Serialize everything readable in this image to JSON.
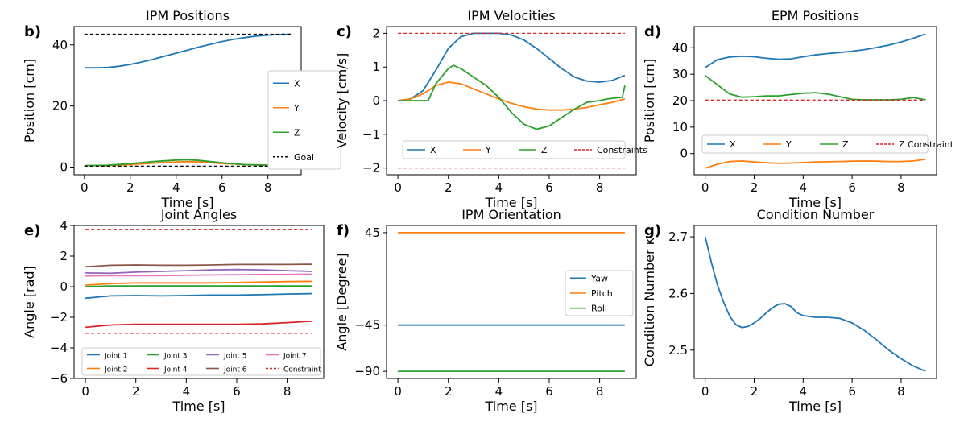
{
  "chart_data": [
    {
      "panel": "b)",
      "type": "line",
      "title": "IPM Positions",
      "xlabel": "Time [s]",
      "ylabel": "Position [cm]",
      "xlim": [
        -0.45,
        9.45
      ],
      "ylim": [
        -2.5,
        46
      ],
      "xticks": [
        0,
        2,
        4,
        6,
        8
      ],
      "yticks": [
        0,
        20,
        40
      ],
      "legend_position": "center-right",
      "series": [
        {
          "name": "X",
          "color": "#1f77b4",
          "dash": "",
          "x": [
            0,
            0.5,
            1,
            1.5,
            2,
            2.5,
            3,
            3.5,
            4,
            4.5,
            5,
            5.5,
            6,
            6.5,
            7,
            7.5,
            8,
            8.5,
            9
          ],
          "y": [
            32.5,
            32.5,
            32.6,
            33.0,
            33.6,
            34.4,
            35.3,
            36.3,
            37.3,
            38.3,
            39.3,
            40.2,
            41.1,
            41.8,
            42.4,
            42.9,
            43.2,
            43.4,
            43.5
          ]
        },
        {
          "name": "Y",
          "color": "#ff7f0e",
          "dash": "",
          "x": [
            0,
            1,
            2,
            3,
            4,
            4.5,
            5,
            6,
            7,
            8,
            9
          ],
          "y": [
            0.5,
            0.5,
            0.8,
            1.3,
            1.7,
            1.8,
            1.7,
            1.2,
            0.8,
            0.6,
            0.5
          ]
        },
        {
          "name": "Z",
          "color": "#2ca02c",
          "dash": "",
          "x": [
            0,
            1,
            2,
            3,
            4,
            4.5,
            5,
            6,
            7,
            8,
            9
          ],
          "y": [
            0.5,
            0.6,
            1.1,
            1.8,
            2.3,
            2.4,
            2.2,
            1.4,
            0.8,
            0.6,
            0.5
          ]
        },
        {
          "name": "Goal",
          "color": "#000000",
          "dash": "4,3",
          "x": [
            0,
            9
          ],
          "y": [
            43.5,
            43.5
          ]
        },
        {
          "name": "",
          "color": "#000000",
          "dash": "4,3",
          "x": [
            0,
            9
          ],
          "y": [
            0.3,
            0.3
          ]
        }
      ]
    },
    {
      "panel": "c)",
      "type": "line",
      "title": "IPM Velocities",
      "xlabel": "Time [s]",
      "ylabel": "Velocity [cm/s]",
      "xlim": [
        -0.45,
        9.45
      ],
      "ylim": [
        -2.2,
        2.2
      ],
      "xticks": [
        0,
        2,
        4,
        6,
        8
      ],
      "yticks": [
        -2,
        -1,
        0,
        1,
        2
      ],
      "legend_position": "bottom",
      "series": [
        {
          "name": "X",
          "color": "#1f77b4",
          "dash": "",
          "x": [
            0,
            0.5,
            1,
            1.5,
            2,
            2.5,
            3,
            3.5,
            4,
            4.5,
            5,
            5.5,
            6,
            6.5,
            7,
            7.5,
            8,
            8.5,
            9
          ],
          "y": [
            0.0,
            0.05,
            0.3,
            0.9,
            1.55,
            1.9,
            2.0,
            2.0,
            2.0,
            1.95,
            1.8,
            1.55,
            1.25,
            0.95,
            0.7,
            0.58,
            0.55,
            0.6,
            0.75
          ]
        },
        {
          "name": "Y",
          "color": "#ff7f0e",
          "dash": "",
          "x": [
            0,
            0.5,
            1,
            1.5,
            2,
            2.5,
            3,
            3.5,
            4,
            4.5,
            5,
            5.5,
            6,
            6.5,
            7,
            7.5,
            8,
            8.5,
            9
          ],
          "y": [
            0.0,
            0.05,
            0.2,
            0.45,
            0.55,
            0.5,
            0.35,
            0.2,
            0.05,
            -0.08,
            -0.18,
            -0.25,
            -0.28,
            -0.28,
            -0.25,
            -0.2,
            -0.12,
            -0.05,
            0.05
          ]
        },
        {
          "name": "Z",
          "color": "#2ca02c",
          "dash": "",
          "x": [
            0,
            1.2,
            1.5,
            2,
            2.2,
            2.5,
            3,
            3.5,
            4,
            4.5,
            5,
            5.5,
            6,
            6.5,
            7,
            7.5,
            8,
            8.3,
            8.9,
            9
          ],
          "y": [
            0.0,
            0.0,
            0.5,
            0.95,
            1.05,
            0.95,
            0.7,
            0.45,
            0.1,
            -0.35,
            -0.7,
            -0.85,
            -0.75,
            -0.5,
            -0.25,
            -0.05,
            0.0,
            0.05,
            0.1,
            0.45
          ]
        },
        {
          "name": "Constraints",
          "color": "#d62728",
          "dash": "4,3",
          "x": [
            0,
            9
          ],
          "y": [
            2.0,
            2.0
          ]
        },
        {
          "name": "",
          "color": "#d62728",
          "dash": "4,3",
          "x": [
            0,
            9
          ],
          "y": [
            -2.0,
            -2.0
          ]
        }
      ]
    },
    {
      "panel": "d)",
      "type": "line",
      "title": "EPM Positions",
      "xlabel": "Time [s]",
      "ylabel": "Position [cm]",
      "xlim": [
        -0.45,
        9.45
      ],
      "ylim": [
        -8,
        48
      ],
      "xticks": [
        0,
        2,
        4,
        6,
        8
      ],
      "yticks": [
        0,
        10,
        20,
        30,
        40
      ],
      "legend_position": "lower-center",
      "series": [
        {
          "name": "X",
          "color": "#1f77b4",
          "dash": "",
          "x": [
            0,
            0.5,
            1,
            1.5,
            2,
            2.5,
            3,
            3.5,
            4,
            4.5,
            5,
            5.5,
            6,
            6.5,
            7,
            7.5,
            8,
            8.5,
            9
          ],
          "y": [
            32.5,
            35.5,
            36.5,
            36.8,
            36.6,
            36.0,
            35.6,
            35.8,
            36.6,
            37.3,
            37.8,
            38.2,
            38.7,
            39.3,
            40.1,
            41.0,
            42.2,
            43.6,
            45.2
          ]
        },
        {
          "name": "Y",
          "color": "#ff7f0e",
          "dash": "",
          "x": [
            0,
            0.5,
            1,
            1.5,
            2,
            2.5,
            3,
            3.5,
            4,
            4.5,
            5,
            5.5,
            6,
            6.5,
            7,
            7.5,
            8,
            8.5,
            9
          ],
          "y": [
            -5.5,
            -4.0,
            -3.0,
            -2.8,
            -3.2,
            -3.5,
            -3.7,
            -3.6,
            -3.4,
            -3.2,
            -3.1,
            -3.0,
            -2.9,
            -2.8,
            -2.9,
            -3.0,
            -3.0,
            -2.8,
            -2.2
          ]
        },
        {
          "name": "Z",
          "color": "#2ca02c",
          "dash": "",
          "x": [
            0,
            0.5,
            1,
            1.5,
            2,
            2.5,
            3,
            3.5,
            4,
            4.5,
            5,
            5.5,
            6,
            6.5,
            7,
            7.5,
            8,
            8.5,
            9
          ],
          "y": [
            29.5,
            26.0,
            22.5,
            21.3,
            21.5,
            21.8,
            21.8,
            22.3,
            22.8,
            23.0,
            22.5,
            21.5,
            20.5,
            20.3,
            20.3,
            20.3,
            20.5,
            21.2,
            20.3
          ]
        },
        {
          "name": "Z Constraint",
          "color": "#d62728",
          "dash": "4,3",
          "x": [
            0,
            9
          ],
          "y": [
            20.2,
            20.2
          ]
        }
      ]
    },
    {
      "panel": "e)",
      "type": "line",
      "title": "Joint Angles",
      "xlabel": "Time [s]",
      "ylabel": "Angle [rad]",
      "xlim": [
        -0.45,
        9.45
      ],
      "ylim": [
        -6,
        4
      ],
      "xticks": [
        0,
        2,
        4,
        6,
        8
      ],
      "yticks": [
        -6,
        -4,
        -2,
        0,
        2,
        4
      ],
      "legend_position": "bottom",
      "series": [
        {
          "name": "Joint 1",
          "color": "#1f77b4",
          "dash": "",
          "x": [
            0,
            1,
            2,
            3,
            4,
            5,
            6,
            7,
            8,
            9
          ],
          "y": [
            -0.75,
            -0.6,
            -0.58,
            -0.6,
            -0.58,
            -0.55,
            -0.55,
            -0.52,
            -0.48,
            -0.45
          ]
        },
        {
          "name": "Joint 2",
          "color": "#ff7f0e",
          "dash": "",
          "x": [
            0,
            1,
            2,
            3,
            4,
            5,
            6,
            7,
            8,
            9
          ],
          "y": [
            0.1,
            0.2,
            0.25,
            0.25,
            0.25,
            0.25,
            0.27,
            0.3,
            0.33,
            0.35
          ]
        },
        {
          "name": "Joint 3",
          "color": "#2ca02c",
          "dash": "",
          "x": [
            0,
            1,
            2,
            3,
            4,
            5,
            6,
            7,
            8,
            9
          ],
          "y": [
            0.0,
            0.05,
            0.05,
            0.05,
            0.05,
            0.05,
            0.05,
            0.05,
            0.05,
            0.05
          ]
        },
        {
          "name": "Joint 4",
          "color": "#d62728",
          "dash": "",
          "x": [
            0,
            1,
            2,
            3,
            4,
            5,
            6,
            7,
            8,
            9
          ],
          "y": [
            -2.65,
            -2.5,
            -2.45,
            -2.45,
            -2.45,
            -2.45,
            -2.45,
            -2.43,
            -2.35,
            -2.25
          ]
        },
        {
          "name": "Joint 5",
          "color": "#9467bd",
          "dash": "",
          "x": [
            0,
            1,
            2,
            3,
            4,
            5,
            6,
            7,
            8,
            9
          ],
          "y": [
            0.9,
            0.88,
            0.95,
            1.0,
            1.05,
            1.1,
            1.12,
            1.1,
            1.05,
            1.0
          ]
        },
        {
          "name": "Joint 6",
          "color": "#8c564b",
          "dash": "",
          "x": [
            0,
            1,
            2,
            3,
            4,
            5,
            6,
            7,
            8,
            9
          ],
          "y": [
            1.3,
            1.4,
            1.42,
            1.4,
            1.4,
            1.42,
            1.45,
            1.45,
            1.45,
            1.47
          ]
        },
        {
          "name": "Joint 7",
          "color": "#e377c2",
          "dash": "",
          "x": [
            0,
            1,
            2,
            3,
            4,
            5,
            6,
            7,
            8,
            9
          ],
          "y": [
            0.7,
            0.72,
            0.72,
            0.72,
            0.75,
            0.77,
            0.78,
            0.8,
            0.8,
            0.82
          ]
        },
        {
          "name": "Constraint",
          "color": "#d62728",
          "dash": "4,3",
          "x": [
            0,
            9
          ],
          "y": [
            3.75,
            3.75
          ]
        },
        {
          "name": "",
          "color": "#d62728",
          "dash": "4,3",
          "x": [
            0,
            9
          ],
          "y": [
            -3.05,
            -3.05
          ]
        }
      ]
    },
    {
      "panel": "f)",
      "type": "line",
      "title": "IPM Orientation",
      "xlabel": "Time [s]",
      "ylabel": "Angle [Degree]",
      "xlim": [
        -0.45,
        9.45
      ],
      "ylim": [
        -97,
        52
      ],
      "xticks": [
        0,
        2,
        4,
        6,
        8
      ],
      "yticks": [
        -90,
        -45,
        45
      ],
      "legend_position": "center-right",
      "series": [
        {
          "name": "Yaw",
          "color": "#1f77b4",
          "dash": "",
          "x": [
            0,
            9
          ],
          "y": [
            -45,
            -45
          ]
        },
        {
          "name": "Pitch",
          "color": "#ff7f0e",
          "dash": "",
          "x": [
            0,
            9
          ],
          "y": [
            45,
            45
          ]
        },
        {
          "name": "Roll",
          "color": "#2ca02c",
          "dash": "",
          "x": [
            0,
            9
          ],
          "y": [
            -90,
            -90
          ]
        }
      ]
    },
    {
      "panel": "g)",
      "type": "line",
      "title": "Condition Number",
      "xlabel": "Time [s]",
      "ylabel": "Condition Number κ",
      "xlim": [
        -0.45,
        9.45
      ],
      "ylim": [
        2.45,
        2.72
      ],
      "xticks": [
        0,
        2,
        4,
        6,
        8
      ],
      "yticks": [
        2.5,
        2.6,
        2.7
      ],
      "legend_position": "none",
      "series": [
        {
          "name": "",
          "color": "#1f77b4",
          "dash": "",
          "x": [
            0,
            0.25,
            0.5,
            0.75,
            1,
            1.25,
            1.5,
            1.75,
            2,
            2.25,
            2.5,
            2.75,
            3,
            3.25,
            3.5,
            3.75,
            4,
            4.5,
            5,
            5.5,
            6,
            6.5,
            7,
            7.5,
            8,
            8.5,
            9
          ],
          "y": [
            2.7,
            2.655,
            2.615,
            2.585,
            2.56,
            2.545,
            2.54,
            2.542,
            2.548,
            2.556,
            2.566,
            2.575,
            2.581,
            2.582,
            2.577,
            2.566,
            2.561,
            2.558,
            2.558,
            2.556,
            2.548,
            2.535,
            2.518,
            2.5,
            2.485,
            2.472,
            2.463
          ]
        }
      ]
    }
  ]
}
